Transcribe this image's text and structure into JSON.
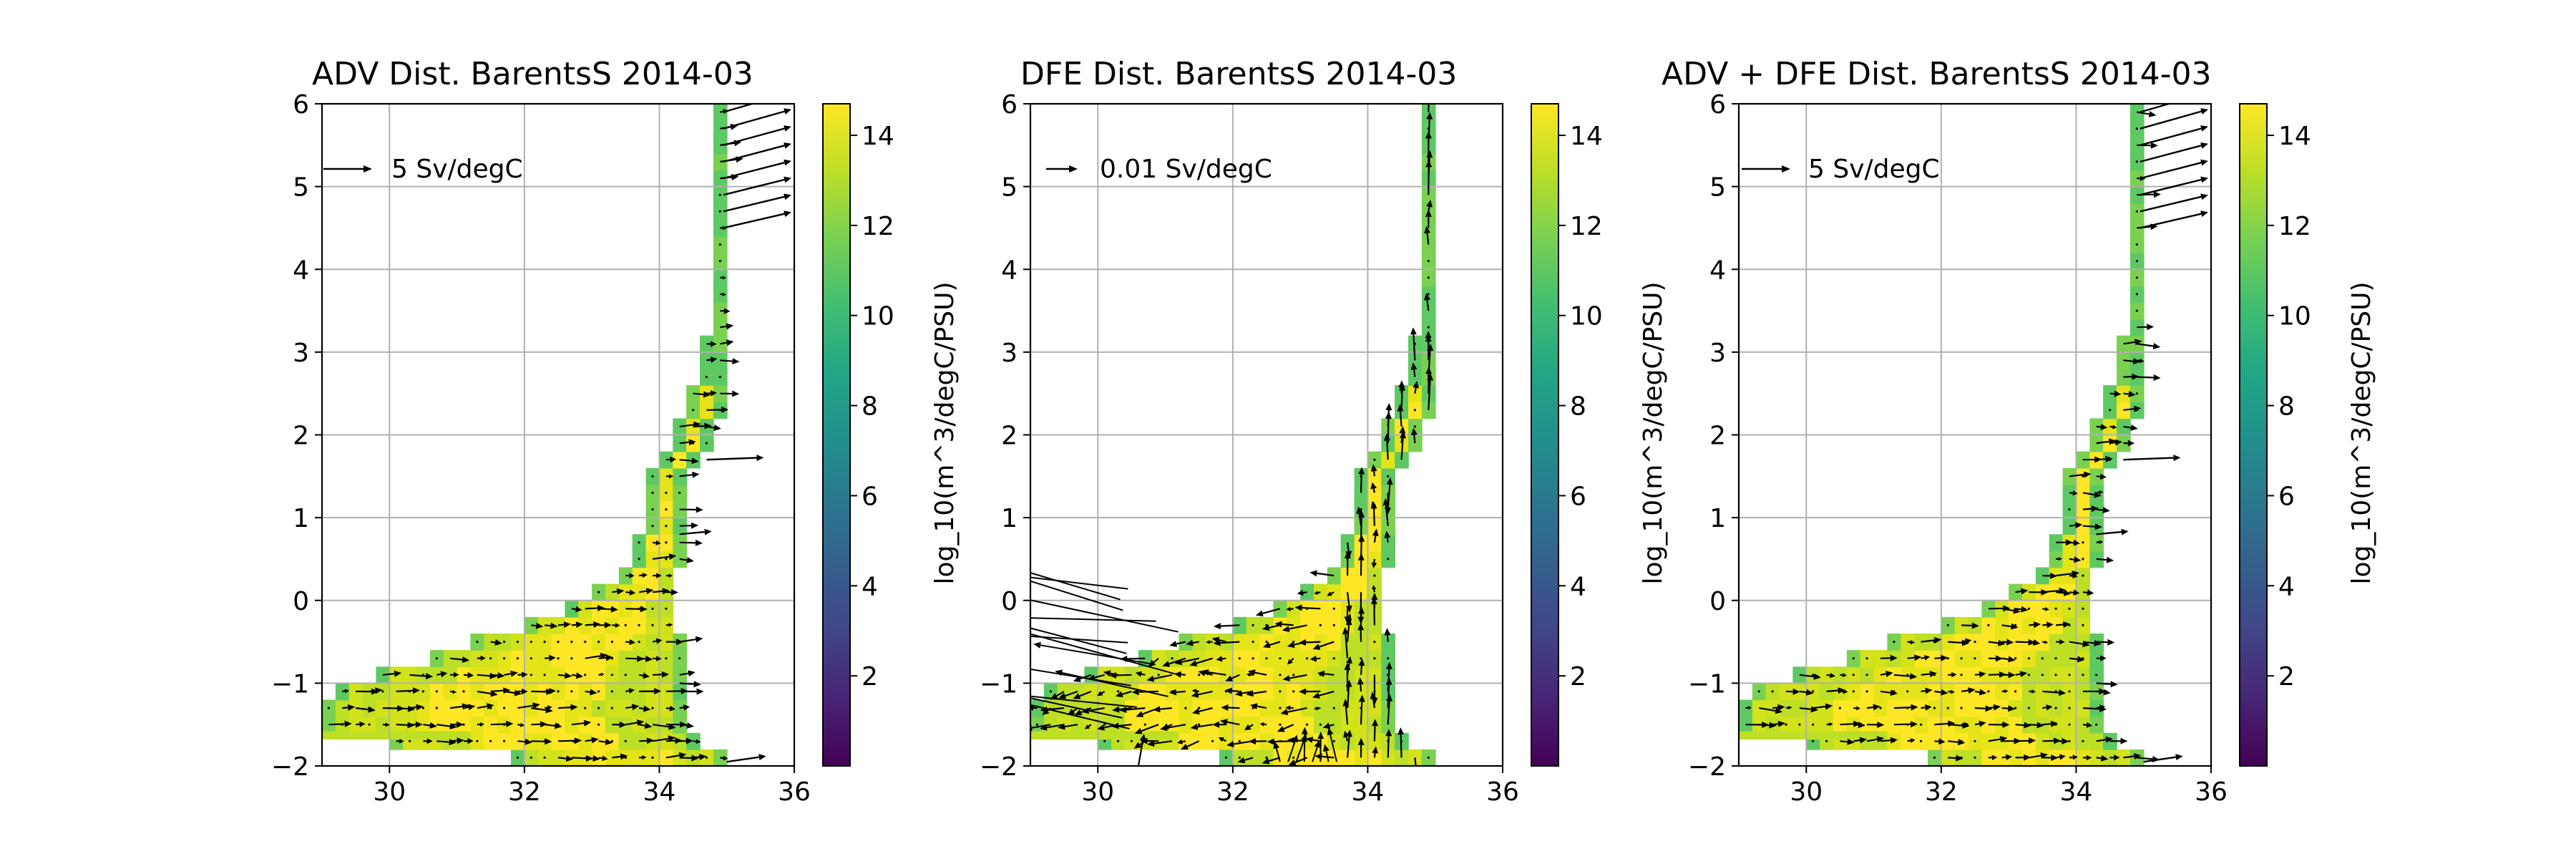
{
  "chart_data": [
    {
      "type": "quiver-heatmap",
      "title": "ADV Dist. BarentsS 2014-03",
      "xlim": [
        29,
        36
      ],
      "ylim": [
        -2,
        6
      ],
      "xticks": [
        "30",
        "32",
        "34",
        "36"
      ],
      "yticks": [
        "−2",
        "−1",
        "0",
        "1",
        "2",
        "3",
        "4",
        "5",
        "6"
      ],
      "grid": true,
      "quiver_key": "5 Sv/degC",
      "colorbar": {
        "label": "log_10(m^3/degC/PSU)",
        "range": [
          0,
          14.7
        ],
        "ticks": [
          "2",
          "4",
          "6",
          "8",
          "10",
          "12",
          "14"
        ],
        "colormap": "viridis"
      },
      "arrow_style": "adv"
    },
    {
      "type": "quiver-heatmap",
      "title": "DFE Dist. BarentsS 2014-03",
      "xlim": [
        29,
        36
      ],
      "ylim": [
        -2,
        6
      ],
      "xticks": [
        "30",
        "32",
        "34",
        "36"
      ],
      "yticks": [
        "−2",
        "−1",
        "0",
        "1",
        "2",
        "3",
        "4",
        "5",
        "6"
      ],
      "grid": true,
      "quiver_key": "0.01 Sv/degC",
      "colorbar": {
        "label": "log_10(m^3/degC/PSU)",
        "range": [
          0,
          14.7
        ],
        "ticks": [
          "2",
          "4",
          "6",
          "8",
          "10",
          "12",
          "14"
        ],
        "colormap": "viridis"
      },
      "arrow_style": "dfe"
    },
    {
      "type": "quiver-heatmap",
      "title": "ADV + DFE Dist. BarentsS 2014-03",
      "xlim": [
        29,
        36
      ],
      "ylim": [
        -2,
        6
      ],
      "xticks": [
        "30",
        "32",
        "34",
        "36"
      ],
      "yticks": [
        "−2",
        "−1",
        "0",
        "1",
        "2",
        "3",
        "4",
        "5",
        "6"
      ],
      "grid": true,
      "quiver_key": "5 Sv/degC",
      "colorbar": {
        "label": "log_10(m^3/degC/PSU)",
        "range": [
          0,
          14.7
        ],
        "ticks": [
          "2",
          "4",
          "6",
          "8",
          "10",
          "12",
          "14"
        ],
        "colormap": "viridis"
      },
      "arrow_style": "adv"
    }
  ],
  "distribution_envelope": {
    "description_units": "salinity (PSU) bounds per temperature (degC) row",
    "rows": [
      {
        "t": -2.0,
        "smin": 32.6,
        "smax": 35.4
      },
      {
        "t": -1.8,
        "smin": 31.0,
        "smax": 34.7
      },
      {
        "t": -1.6,
        "smin": 29.0,
        "smax": 34.5
      },
      {
        "t": -1.2,
        "smin": 29.0,
        "smax": 34.4
      },
      {
        "t": -1.0,
        "smin": 29.6,
        "smax": 34.4
      },
      {
        "t": -0.8,
        "smin": 30.2,
        "smax": 34.4
      },
      {
        "t": -0.6,
        "smin": 30.9,
        "smax": 34.4
      },
      {
        "t": -0.4,
        "smin": 31.6,
        "smax": 34.3
      },
      {
        "t": -0.2,
        "smin": 32.3,
        "smax": 34.3
      },
      {
        "t": 0.0,
        "smin": 32.9,
        "smax": 34.3
      },
      {
        "t": 0.2,
        "smin": 33.3,
        "smax": 34.3
      },
      {
        "t": 0.4,
        "smin": 33.5,
        "smax": 34.3
      },
      {
        "t": 0.8,
        "smin": 33.7,
        "smax": 34.4
      },
      {
        "t": 1.2,
        "smin": 33.8,
        "smax": 34.4
      },
      {
        "t": 1.6,
        "smin": 33.9,
        "smax": 34.5
      },
      {
        "t": 2.0,
        "smin": 34.2,
        "smax": 34.8
      },
      {
        "t": 2.4,
        "smin": 34.4,
        "smax": 35.0
      },
      {
        "t": 2.8,
        "smin": 34.6,
        "smax": 35.0
      },
      {
        "t": 3.2,
        "smin": 34.7,
        "smax": 35.0
      },
      {
        "t": 3.8,
        "smin": 34.8,
        "smax": 35.0
      },
      {
        "t": 4.6,
        "smin": 34.8,
        "smax": 35.0
      },
      {
        "t": 5.2,
        "smin": 34.9,
        "smax": 35.1
      },
      {
        "t": 6.0,
        "smin": 34.9,
        "smax": 35.1
      }
    ]
  }
}
